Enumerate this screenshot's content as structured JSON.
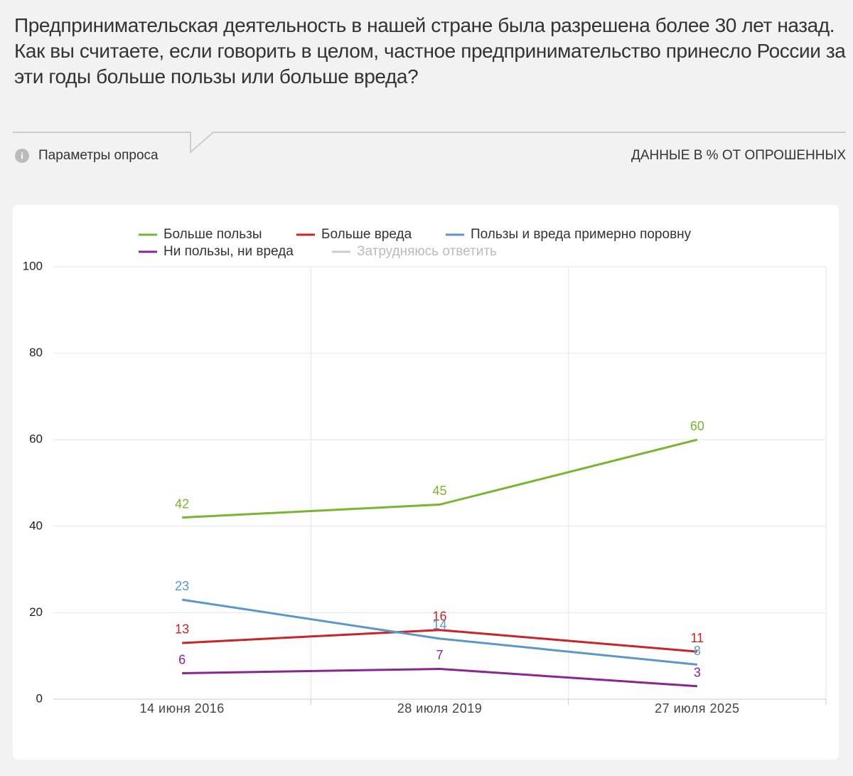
{
  "title": "Предпринимательская деятельность в нашей стране была разрешена более 30 лет назад. Как вы считаете, если говорить в целом, частное предпринимательство принесло России за эти годы больше пользы или больше вреда?",
  "params": "Параметры опроса",
  "units": "ДАННЫЕ В % ОТ ОПРОШЕННЫХ",
  "chart_data": {
    "type": "line",
    "categories": [
      "14 июня 2016",
      "28 июля 2019",
      "27 июля 2025"
    ],
    "series": [
      {
        "name": "Больше пользы",
        "color": "#7ab530",
        "values": [
          42,
          45,
          60
        ]
      },
      {
        "name": "Больше вреда",
        "color": "#cc2229",
        "values": [
          13,
          16,
          11
        ]
      },
      {
        "name": "Пользы и вреда примерно поровну",
        "color": "#5b97c8",
        "values": [
          23,
          14,
          8
        ]
      },
      {
        "name": "Ни пользы, ни вреда",
        "color": "#8a2593",
        "values": [
          6,
          7,
          3
        ]
      },
      {
        "name": "Затрудняюсь ответить",
        "color": "#cccccc",
        "values": [
          null,
          null,
          null
        ],
        "hidden": true
      }
    ],
    "ylim": [
      0,
      100
    ],
    "yticks": [
      0,
      20,
      40,
      60,
      80,
      100
    ],
    "grid": true
  }
}
